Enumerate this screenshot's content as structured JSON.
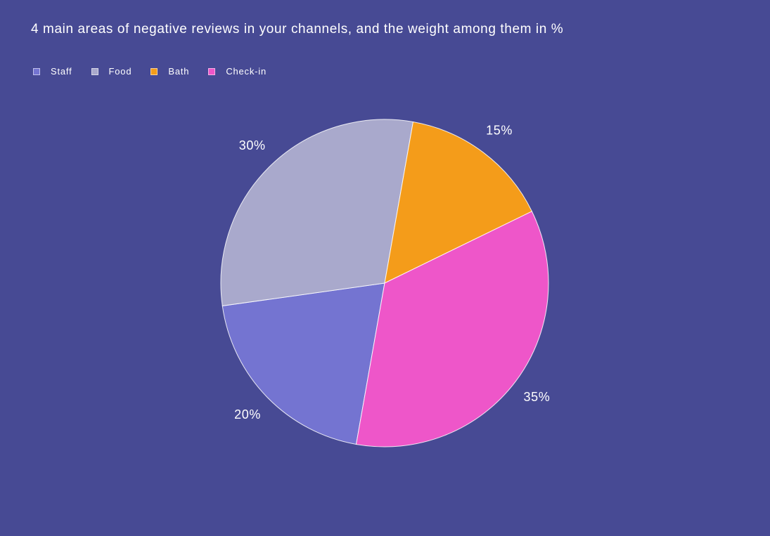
{
  "chart_data": {
    "type": "pie",
    "title": "4 main areas of negative reviews in your channels, and the weight among them in %",
    "legend_position": "top-left",
    "slices": [
      {
        "name": "Staff",
        "value": 20,
        "label": "20%",
        "color": "#7474d1"
      },
      {
        "name": "Food",
        "value": 30,
        "label": "30%",
        "color": "#a9a9cc"
      },
      {
        "name": "Bath",
        "value": 15,
        "label": "15%",
        "color": "#f49c1a"
      },
      {
        "name": "Check-in",
        "value": 35,
        "label": "35%",
        "color": "#ee56c9"
      }
    ]
  },
  "theme": {
    "background": "#474a94",
    "slice_border": "#ffffff"
  }
}
